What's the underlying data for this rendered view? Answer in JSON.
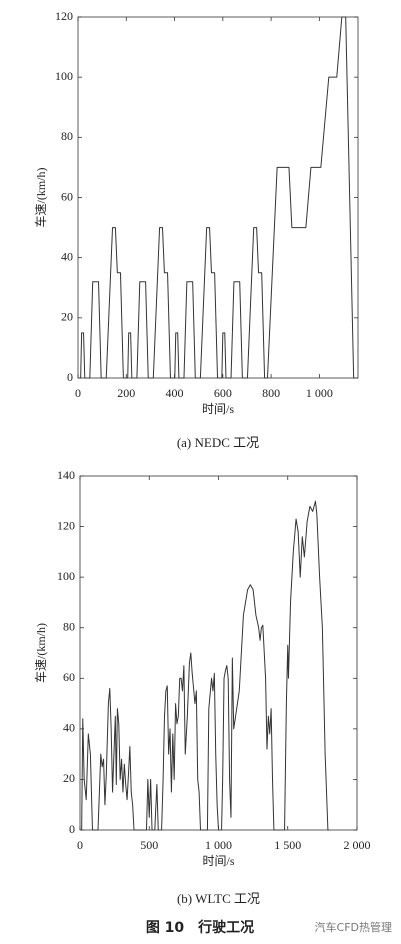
{
  "chart_data": [
    {
      "type": "line",
      "title": "(a) NEDC 工况",
      "xlabel": "时间/s",
      "ylabel": "车速/(km/h)",
      "color": "#333333",
      "x": [
        0,
        11,
        15,
        23,
        28,
        49,
        61,
        85,
        96,
        117,
        143,
        155,
        163,
        176,
        188,
        195,
        206,
        210,
        218,
        223,
        244,
        256,
        280,
        291,
        312,
        338,
        350,
        358,
        371,
        383,
        390,
        401,
        405,
        413,
        418,
        439,
        451,
        475,
        486,
        507,
        533,
        545,
        553,
        566,
        578,
        585,
        596,
        600,
        608,
        613,
        634,
        646,
        670,
        681,
        702,
        728,
        740,
        748,
        761,
        773,
        785,
        825,
        874,
        886,
        944,
        965,
        1006,
        1039,
        1072,
        1093,
        1109,
        1142,
        1160
      ],
      "values": [
        0,
        0,
        15,
        15,
        0,
        0,
        32,
        32,
        0,
        0,
        50,
        50,
        35,
        35,
        0,
        0,
        0,
        15,
        15,
        0,
        0,
        32,
        32,
        0,
        0,
        50,
        50,
        35,
        35,
        0,
        0,
        0,
        15,
        15,
        0,
        0,
        32,
        32,
        0,
        0,
        50,
        50,
        35,
        35,
        0,
        0,
        0,
        15,
        15,
        0,
        0,
        32,
        32,
        0,
        0,
        50,
        50,
        35,
        35,
        0,
        0,
        70,
        70,
        50,
        50,
        70,
        70,
        100,
        100,
        120,
        120,
        0,
        0
      ],
      "xlim": [
        0,
        1160
      ],
      "ylim": [
        0,
        120
      ],
      "xticks": [
        0,
        200,
        400,
        600,
        800,
        {
          "value": 1000,
          "label": "1 000"
        }
      ],
      "yticks": [
        0,
        20,
        40,
        60,
        80,
        100,
        120
      ]
    },
    {
      "type": "line",
      "title": "(b) WLTC 工况",
      "xlabel": "时间/s",
      "ylabel": "车速/(km/h)",
      "color": "#333333",
      "x": [
        0,
        12,
        20,
        30,
        45,
        60,
        75,
        90,
        130,
        140,
        150,
        160,
        170,
        180,
        190,
        205,
        215,
        225,
        235,
        245,
        255,
        262,
        270,
        280,
        290,
        300,
        310,
        320,
        330,
        340,
        350,
        360,
        370,
        380,
        390,
        480,
        490,
        500,
        510,
        520,
        540,
        555,
        565,
        589,
        600,
        610,
        620,
        630,
        640,
        650,
        660,
        670,
        680,
        690,
        700,
        710,
        720,
        730,
        740,
        750,
        760,
        775,
        790,
        800,
        810,
        830,
        840,
        850,
        860,
        870,
        920,
        930,
        950,
        960,
        970,
        980,
        990,
        1000,
        1022,
        1030,
        1040,
        1050,
        1060,
        1070,
        1080,
        1090,
        1100,
        1110,
        1150,
        1180,
        1210,
        1230,
        1250,
        1270,
        1290,
        1300,
        1310,
        1320,
        1340,
        1350,
        1360,
        1370,
        1380,
        1390,
        1400,
        1477,
        1490,
        1500,
        1505,
        1520,
        1540,
        1560,
        1575,
        1590,
        1605,
        1620,
        1640,
        1660,
        1680,
        1700,
        1710,
        1730,
        1750,
        1770,
        1790,
        1800
      ],
      "values": [
        0,
        0,
        44,
        20,
        12,
        38,
        30,
        0,
        0,
        15,
        30,
        25,
        28,
        10,
        22,
        50,
        56,
        40,
        15,
        30,
        45,
        18,
        48,
        42,
        20,
        28,
        15,
        26,
        18,
        12,
        22,
        33,
        15,
        10,
        0,
        0,
        20,
        5,
        20,
        0,
        0,
        18,
        0,
        0,
        20,
        45,
        55,
        57,
        30,
        40,
        15,
        38,
        20,
        50,
        42,
        45,
        60,
        60,
        55,
        65,
        30,
        45,
        66,
        70,
        62,
        50,
        55,
        20,
        15,
        0,
        0,
        48,
        60,
        55,
        62,
        30,
        10,
        0,
        0,
        20,
        60,
        63,
        65,
        60,
        20,
        5,
        68,
        40,
        55,
        85,
        95,
        97,
        95,
        85,
        80,
        75,
        80,
        81,
        60,
        32,
        45,
        38,
        48,
        20,
        0,
        0,
        50,
        73,
        60,
        90,
        110,
        123,
        118,
        100,
        116,
        108,
        122,
        128,
        126,
        130,
        125,
        100,
        80,
        30,
        0,
        0
      ],
      "xlim": [
        0,
        2000
      ],
      "ylim": [
        0,
        140
      ],
      "xticks": [
        0,
        500,
        {
          "value": 1000,
          "label": "1 000"
        },
        {
          "value": 1500,
          "label": "1 500"
        },
        {
          "value": 2000,
          "label": "2 000"
        }
      ],
      "yticks": [
        0,
        20,
        40,
        60,
        80,
        100,
        120,
        140
      ]
    }
  ],
  "figure_caption": "图 10　行驶工况",
  "watermark": "汽车CFD热管理"
}
